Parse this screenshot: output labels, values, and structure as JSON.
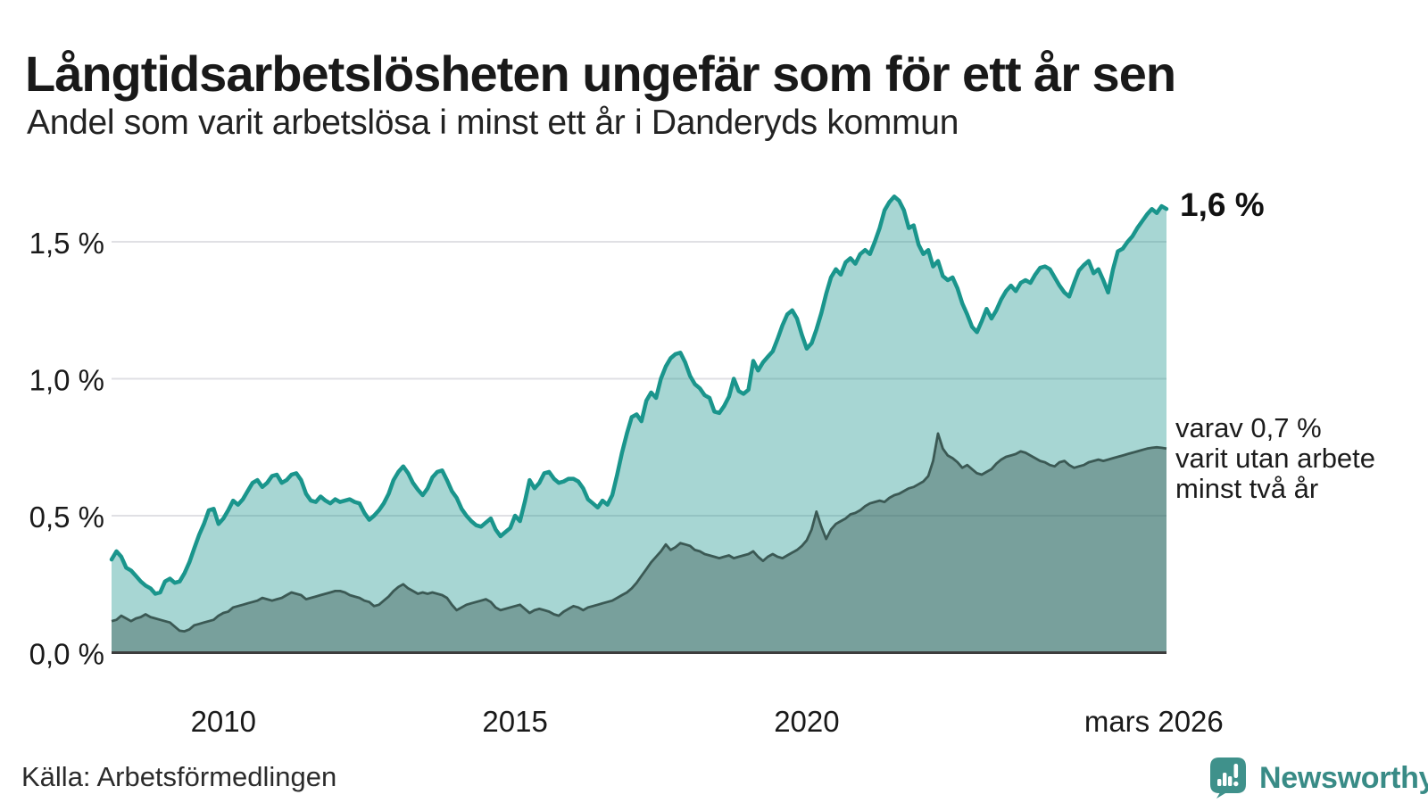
{
  "header": {
    "title": "Långtidsarbetslösheten ungefär som för ett år sen",
    "subtitle": "Andel som varit arbetslösa i minst ett år i Danderyds kommun"
  },
  "annotations": {
    "end_value": "1,6 %",
    "side": [
      "varav 0,7 %",
      "varit utan arbete",
      "minst två år"
    ]
  },
  "source": {
    "text": "Källa: Arbetsförmedlingen"
  },
  "branding": {
    "name": "Newsworthy",
    "logo_icon": "speech-bubble-bar-chart-exclamation-icon"
  },
  "colors": {
    "total_line": "#1A958C",
    "total_fill": "rgba(23,148,140,0.38)",
    "two_year_line": "#3B5954",
    "two_year_fill": "rgba(50,80,74,0.40)",
    "gridline": "#E0E0E4",
    "axis_line": "#3D3D3D",
    "tick_text": "#1A1A1A",
    "brand_teal": "#3F918B"
  },
  "chart_data": {
    "type": "area",
    "title": "Långtidsarbetslösheten ungefär som för ett år sen",
    "subtitle": "Andel som varit arbetslösa i minst ett år i Danderyds kommun",
    "unit": "%",
    "x_start_year": 2008.0833,
    "x_step_years": 0.0833,
    "xlim": [
      2008.083,
      2026.167
    ],
    "ylim": [
      0,
      1.7
    ],
    "grid": "horizontal",
    "legend": "none",
    "annotations": [
      "1,6 %",
      "varav 0,7 % varit utan arbete minst två år"
    ],
    "yticks": [
      {
        "v": 0.0,
        "label": "0,0 %"
      },
      {
        "v": 0.5,
        "label": "0,5 %"
      },
      {
        "v": 1.0,
        "label": "1,0 %"
      },
      {
        "v": 1.5,
        "label": "1,5 %"
      }
    ],
    "xticks": [
      {
        "v": 2010,
        "label": "2010"
      },
      {
        "v": 2015,
        "label": "2015"
      },
      {
        "v": 2020,
        "label": "2020"
      },
      {
        "v": 2025.95,
        "label": "mars 2026"
      }
    ],
    "series": [
      {
        "name": "Andel arbetslösa minst ett år",
        "end_label": "1,6 %",
        "values": [
          0.34,
          0.37,
          0.35,
          0.31,
          0.3,
          0.28,
          0.26,
          0.245,
          0.235,
          0.215,
          0.22,
          0.26,
          0.27,
          0.255,
          0.26,
          0.29,
          0.33,
          0.38,
          0.43,
          0.47,
          0.52,
          0.525,
          0.47,
          0.49,
          0.52,
          0.555,
          0.54,
          0.56,
          0.59,
          0.62,
          0.63,
          0.605,
          0.62,
          0.645,
          0.65,
          0.62,
          0.63,
          0.65,
          0.655,
          0.63,
          0.58,
          0.555,
          0.55,
          0.57,
          0.555,
          0.545,
          0.56,
          0.55,
          0.555,
          0.56,
          0.55,
          0.545,
          0.51,
          0.485,
          0.5,
          0.52,
          0.545,
          0.58,
          0.63,
          0.66,
          0.68,
          0.655,
          0.62,
          0.595,
          0.575,
          0.6,
          0.64,
          0.66,
          0.665,
          0.63,
          0.59,
          0.565,
          0.525,
          0.5,
          0.48,
          0.465,
          0.46,
          0.475,
          0.49,
          0.45,
          0.425,
          0.44,
          0.455,
          0.5,
          0.48,
          0.55,
          0.63,
          0.6,
          0.62,
          0.655,
          0.66,
          0.635,
          0.62,
          0.625,
          0.635,
          0.635,
          0.625,
          0.6,
          0.56,
          0.545,
          0.53,
          0.555,
          0.54,
          0.575,
          0.65,
          0.73,
          0.8,
          0.86,
          0.87,
          0.845,
          0.92,
          0.95,
          0.93,
          1.0,
          1.045,
          1.075,
          1.09,
          1.095,
          1.06,
          1.01,
          0.98,
          0.965,
          0.94,
          0.93,
          0.88,
          0.875,
          0.9,
          0.935,
          1.0,
          0.955,
          0.945,
          0.96,
          1.065,
          1.03,
          1.06,
          1.08,
          1.1,
          1.145,
          1.195,
          1.235,
          1.25,
          1.22,
          1.16,
          1.11,
          1.13,
          1.18,
          1.24,
          1.31,
          1.37,
          1.4,
          1.38,
          1.425,
          1.44,
          1.42,
          1.455,
          1.47,
          1.455,
          1.5,
          1.55,
          1.615,
          1.645,
          1.665,
          1.65,
          1.615,
          1.55,
          1.56,
          1.49,
          1.455,
          1.47,
          1.41,
          1.43,
          1.375,
          1.36,
          1.37,
          1.33,
          1.275,
          1.235,
          1.19,
          1.17,
          1.21,
          1.255,
          1.22,
          1.25,
          1.29,
          1.32,
          1.34,
          1.32,
          1.35,
          1.36,
          1.35,
          1.38,
          1.405,
          1.41,
          1.4,
          1.37,
          1.34,
          1.315,
          1.3,
          1.35,
          1.395,
          1.415,
          1.43,
          1.385,
          1.4,
          1.36,
          1.315,
          1.4,
          1.465,
          1.475,
          1.5,
          1.52,
          1.55,
          1.575,
          1.6,
          1.62,
          1.605,
          1.63,
          1.62
        ]
      },
      {
        "name": "varav utan arbete minst två år",
        "end_label": "varav 0,7 % varit utan arbete minst två år",
        "values": [
          0.115,
          0.12,
          0.135,
          0.125,
          0.115,
          0.125,
          0.13,
          0.14,
          0.13,
          0.125,
          0.12,
          0.115,
          0.11,
          0.095,
          0.08,
          0.078,
          0.085,
          0.1,
          0.105,
          0.11,
          0.115,
          0.12,
          0.135,
          0.145,
          0.15,
          0.165,
          0.17,
          0.175,
          0.18,
          0.185,
          0.19,
          0.2,
          0.195,
          0.19,
          0.195,
          0.2,
          0.21,
          0.22,
          0.215,
          0.21,
          0.195,
          0.2,
          0.205,
          0.21,
          0.215,
          0.22,
          0.225,
          0.225,
          0.22,
          0.21,
          0.205,
          0.2,
          0.19,
          0.185,
          0.17,
          0.175,
          0.19,
          0.205,
          0.225,
          0.24,
          0.25,
          0.235,
          0.225,
          0.215,
          0.22,
          0.215,
          0.22,
          0.215,
          0.21,
          0.2,
          0.175,
          0.155,
          0.165,
          0.175,
          0.18,
          0.185,
          0.19,
          0.195,
          0.185,
          0.165,
          0.155,
          0.16,
          0.165,
          0.17,
          0.175,
          0.16,
          0.145,
          0.155,
          0.16,
          0.155,
          0.15,
          0.14,
          0.135,
          0.15,
          0.16,
          0.17,
          0.165,
          0.155,
          0.165,
          0.17,
          0.175,
          0.18,
          0.185,
          0.19,
          0.2,
          0.21,
          0.22,
          0.235,
          0.255,
          0.28,
          0.305,
          0.33,
          0.35,
          0.37,
          0.395,
          0.375,
          0.385,
          0.4,
          0.395,
          0.39,
          0.375,
          0.37,
          0.36,
          0.355,
          0.35,
          0.345,
          0.35,
          0.355,
          0.345,
          0.35,
          0.355,
          0.36,
          0.37,
          0.35,
          0.335,
          0.35,
          0.36,
          0.35,
          0.345,
          0.355,
          0.365,
          0.375,
          0.39,
          0.41,
          0.45,
          0.515,
          0.46,
          0.415,
          0.45,
          0.47,
          0.48,
          0.49,
          0.505,
          0.51,
          0.52,
          0.535,
          0.545,
          0.55,
          0.555,
          0.55,
          0.565,
          0.575,
          0.58,
          0.59,
          0.6,
          0.605,
          0.615,
          0.625,
          0.645,
          0.7,
          0.8,
          0.745,
          0.72,
          0.71,
          0.695,
          0.675,
          0.685,
          0.67,
          0.655,
          0.65,
          0.66,
          0.67,
          0.69,
          0.705,
          0.715,
          0.72,
          0.725,
          0.735,
          0.73,
          0.72,
          0.71,
          0.7,
          0.695,
          0.685,
          0.68,
          0.695,
          0.7,
          0.685,
          0.675,
          0.68,
          0.685,
          0.695,
          0.7,
          0.705,
          0.7,
          0.705,
          0.71,
          0.715,
          0.72,
          0.725,
          0.73,
          0.735,
          0.74,
          0.745,
          0.748,
          0.75,
          0.748,
          0.745
        ]
      }
    ]
  }
}
